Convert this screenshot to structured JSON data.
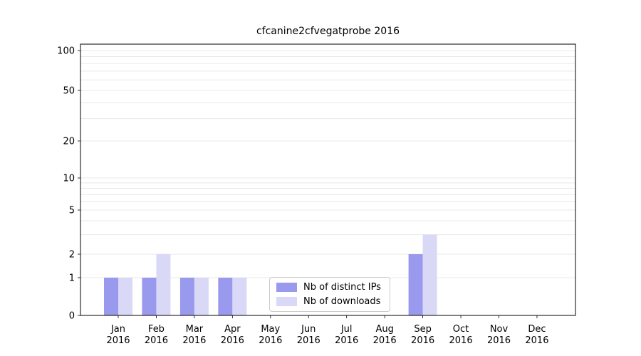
{
  "title": "cfcanine2cfvegatprobe 2016",
  "chart_data": {
    "type": "bar",
    "categories": [
      "Jan",
      "Feb",
      "Mar",
      "Apr",
      "May",
      "Jun",
      "Jul",
      "Aug",
      "Sep",
      "Oct",
      "Nov",
      "Dec"
    ],
    "year": "2016",
    "series": [
      {
        "name": "Nb of distinct IPs",
        "color": "#9999ed",
        "values": [
          1,
          1,
          1,
          1,
          0,
          0,
          0,
          0,
          2,
          0,
          0,
          0
        ]
      },
      {
        "name": "Nb of downloads",
        "color": "#d9d9f7",
        "values": [
          1,
          2,
          1,
          1,
          0,
          0,
          0,
          0,
          3,
          0,
          0,
          0
        ]
      }
    ],
    "yticks": [
      0,
      1,
      2,
      5,
      10,
      20,
      50,
      100
    ],
    "xlabel": "",
    "ylabel": "",
    "yscale": "symlog",
    "grid": true,
    "legend_position": "inside lower center"
  }
}
